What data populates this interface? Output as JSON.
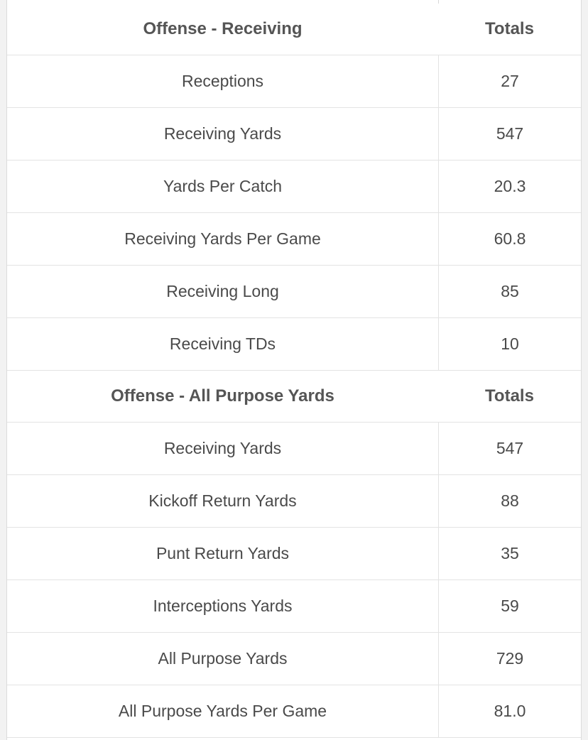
{
  "sections": [
    {
      "header": {
        "label": "Offense - Receiving",
        "totals_label": "Totals"
      },
      "rows": [
        {
          "label": "Receptions",
          "value": "27"
        },
        {
          "label": "Receiving Yards",
          "value": "547"
        },
        {
          "label": "Yards Per Catch",
          "value": "20.3"
        },
        {
          "label": "Receiving Yards Per Game",
          "value": "60.8"
        },
        {
          "label": "Receiving Long",
          "value": "85"
        },
        {
          "label": "Receiving TDs",
          "value": "10"
        }
      ]
    },
    {
      "header": {
        "label": "Offense - All Purpose Yards",
        "totals_label": "Totals"
      },
      "rows": [
        {
          "label": "Receiving Yards",
          "value": "547"
        },
        {
          "label": "Kickoff Return Yards",
          "value": "88"
        },
        {
          "label": "Punt Return Yards",
          "value": "35"
        },
        {
          "label": "Interceptions Yards",
          "value": "59"
        },
        {
          "label": "All Purpose Yards",
          "value": "729"
        },
        {
          "label": "All Purpose Yards Per Game",
          "value": "81.0"
        }
      ]
    }
  ]
}
